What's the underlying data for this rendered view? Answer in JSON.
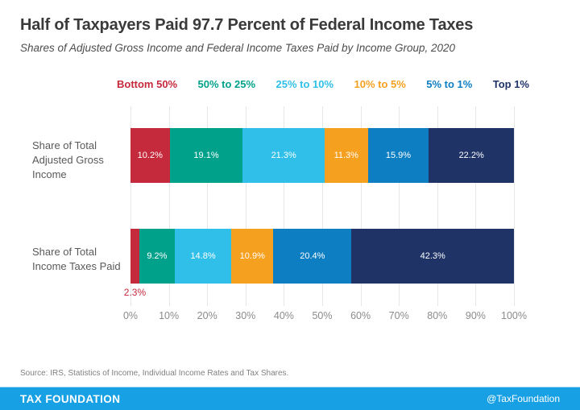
{
  "title": "Half of Taxpayers Paid 97.7 Percent of Federal Income Taxes",
  "subtitle": "Shares of Adjusted Gross Income and Federal Income Taxes Paid by Income Group, 2020",
  "legend": [
    {
      "label": "Bottom 50%",
      "color": "#c5293c"
    },
    {
      "label": "50% to 25%",
      "color": "#00a18a"
    },
    {
      "label": "25% to 10%",
      "color": "#30bfe9"
    },
    {
      "label": "10% to 5%",
      "color": "#f5a01f"
    },
    {
      "label": "5% to 1%",
      "color": "#0d7ec2"
    },
    {
      "label": "Top 1%",
      "color": "#1f3367"
    }
  ],
  "chart_data": {
    "type": "bar",
    "orientation": "horizontal-stacked",
    "title": "Half of Taxpayers Paid 97.7 Percent of Federal Income Taxes",
    "subtitle": "Shares of Adjusted Gross Income and Federal Income Taxes Paid by Income Group, 2020",
    "categories": [
      "Share of Total Adjusted Gross Income",
      "Share of Total Income Taxes Paid"
    ],
    "series": [
      {
        "name": "Bottom 50%",
        "color": "#c5293c",
        "values": [
          10.2,
          2.3
        ]
      },
      {
        "name": "50% to 25%",
        "color": "#00a18a",
        "values": [
          19.1,
          9.2
        ]
      },
      {
        "name": "25% to 10%",
        "color": "#30bfe9",
        "values": [
          21.3,
          14.8
        ]
      },
      {
        "name": "10% to 5%",
        "color": "#f5a01f",
        "values": [
          11.3,
          10.9
        ]
      },
      {
        "name": "5% to 1%",
        "color": "#0d7ec2",
        "values": [
          15.9,
          20.4
        ]
      },
      {
        "name": "Top 1%",
        "color": "#1f3367",
        "values": [
          22.2,
          42.3
        ]
      }
    ],
    "data_labels": [
      [
        "10.2%",
        "19.1%",
        "21.3%",
        "11.3%",
        "15.9%",
        "22.2%"
      ],
      [
        "2.3%",
        "9.2%",
        "14.8%",
        "10.9%",
        "20.4%",
        "42.3%"
      ]
    ],
    "xlim": [
      0,
      100
    ],
    "x_ticks": [
      "0%",
      "10%",
      "20%",
      "30%",
      "40%",
      "50%",
      "60%",
      "70%",
      "80%",
      "90%",
      "100%"
    ],
    "grid": "vertical-on",
    "legend_position": "top"
  },
  "row_labels": [
    "Share of Total Adjusted Gross Income",
    "Share of Total Income Taxes Paid"
  ],
  "source": "Source: IRS, Statistics of Income, Individual Income Rates and Tax Shares.",
  "footer": {
    "brand": "TAX FOUNDATION",
    "handle": "@TaxFoundation",
    "bar_color": "#18a0e4"
  }
}
